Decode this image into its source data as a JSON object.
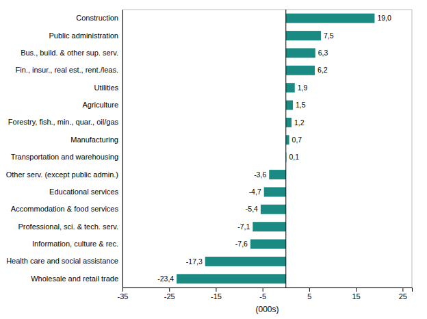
{
  "chart_data": {
    "type": "bar",
    "orientation": "horizontal",
    "categories": [
      "Construction",
      "Public administration",
      "Bus., build. & other sup. serv.",
      "Fin., insur., real est., rent./leas.",
      "Utilities",
      "Agriculture",
      "Forestry, fish., min., quar., oil/gas",
      "Manufacturing",
      "Transportation and warehousing",
      "Other serv. (except public admin.)",
      "Educational services",
      "Accommodation & food services",
      "Professional, sci. & tech. serv.",
      "Information, culture & rec.",
      "Health care and social assistance",
      "Wholesale and retail trade"
    ],
    "values": [
      19.0,
      7.5,
      6.3,
      6.2,
      1.9,
      1.5,
      1.2,
      0.7,
      0.1,
      -3.6,
      -4.7,
      -5.4,
      -7.1,
      -7.6,
      -17.3,
      -23.4
    ],
    "data_labels": true,
    "value_labels": [
      "19,0",
      "7,5",
      "6,3",
      "6,2",
      "1,9",
      "1,5",
      "1,2",
      "0,7",
      "0,1",
      "-3,6",
      "-4,7",
      "-5,4",
      "-7,1",
      "-7,6",
      "-17,3",
      "-23,4"
    ],
    "color": "#1a8a82",
    "xlabel": "(000s)",
    "xlim": [
      -35,
      27
    ],
    "xticks": [
      -35,
      -25,
      -15,
      -5,
      5,
      15,
      25
    ],
    "grid": false
  }
}
